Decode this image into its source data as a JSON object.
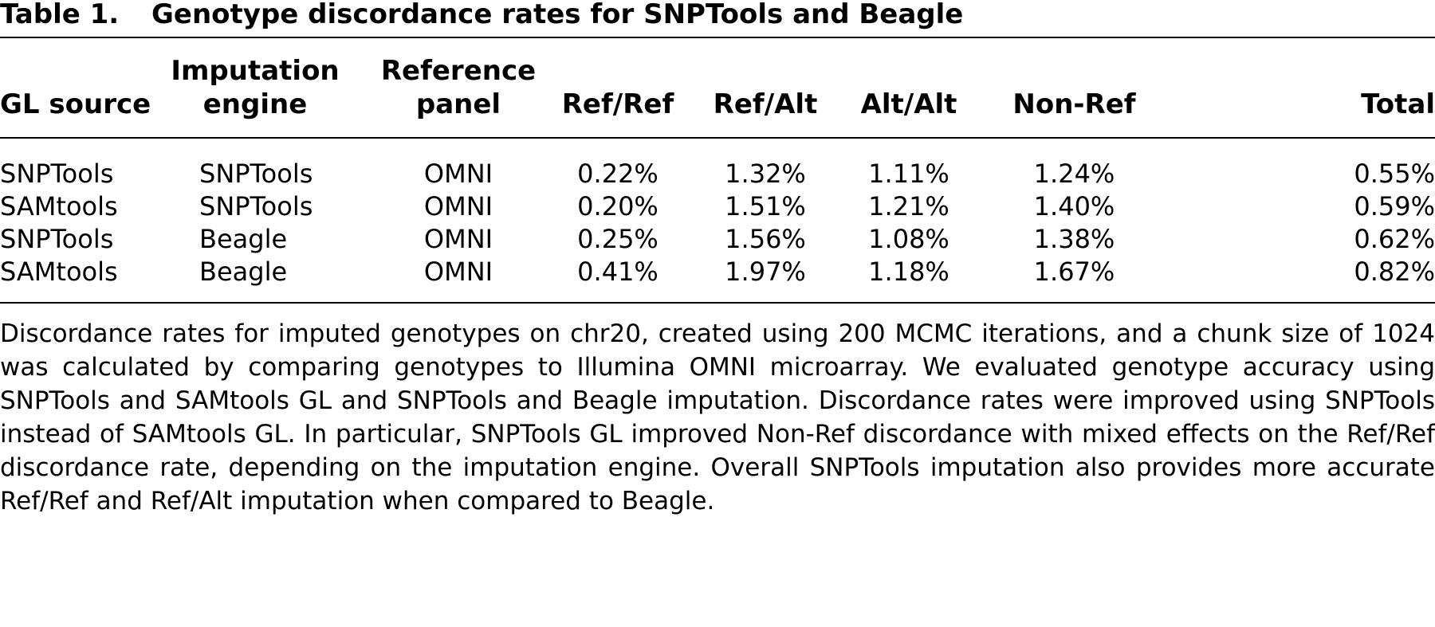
{
  "table": {
    "label": "Table 1.",
    "title": "Genotype discordance rates for SNPTools and Beagle",
    "columns": [
      {
        "lines": [
          "",
          "GL source"
        ]
      },
      {
        "lines": [
          "Imputation",
          "engine"
        ]
      },
      {
        "lines": [
          "Reference",
          "panel"
        ]
      },
      {
        "lines": [
          "",
          "Ref/Ref"
        ]
      },
      {
        "lines": [
          "",
          "Ref/Alt"
        ]
      },
      {
        "lines": [
          "",
          "Alt/Alt"
        ]
      },
      {
        "lines": [
          "",
          "Non-Ref"
        ]
      },
      {
        "lines": [
          "",
          "Total"
        ]
      }
    ],
    "rows": [
      [
        "SNPTools",
        "SNPTools",
        "OMNI",
        "0.22%",
        "1.32%",
        "1.11%",
        "1.24%",
        "0.55%"
      ],
      [
        "SAMtools",
        "SNPTools",
        "OMNI",
        "0.20%",
        "1.51%",
        "1.21%",
        "1.40%",
        "0.59%"
      ],
      [
        "SNPTools",
        "Beagle",
        "OMNI",
        "0.25%",
        "1.56%",
        "1.08%",
        "1.38%",
        "0.62%"
      ],
      [
        "SAMtools",
        "Beagle",
        "OMNI",
        "0.41%",
        "1.97%",
        "1.18%",
        "1.67%",
        "0.82%"
      ]
    ]
  },
  "caption": "Discordance rates for imputed genotypes on chr20, created using 200 MCMC iterations, and a chunk size of 1024 was calculated by comparing genotypes to Illumina OMNI microarray. We evaluated genotype accuracy using SNPTools and SAMtools GL and SNPTools and Beagle imputation. Discordance rates were improved using SNPTools instead of SAMtools GL. In particular, SNPTools GL improved Non-Ref discordance with mixed effects on the Ref/Ref discordance rate, depending on the imputation engine. Overall SNPTools imputation also provides more accurate Ref/Ref and Ref/Alt imputation when compared to Beagle."
}
